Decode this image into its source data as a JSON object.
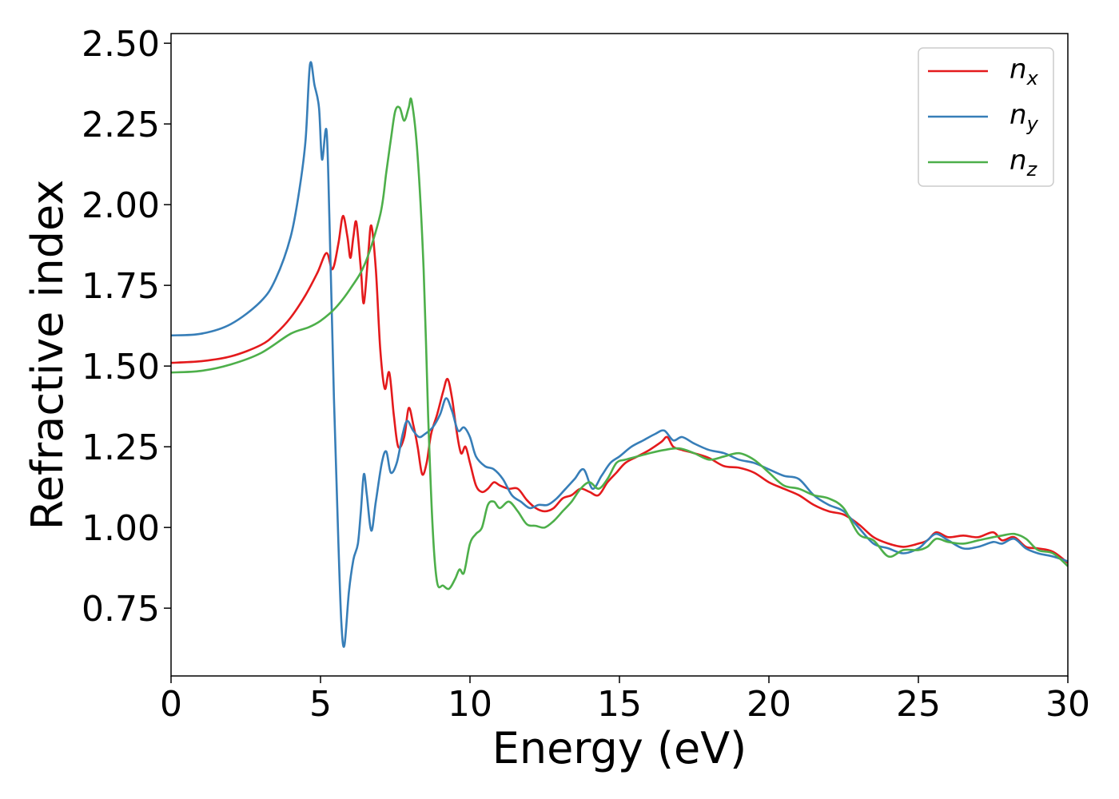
{
  "chart_data": {
    "type": "line",
    "xlabel": "Energy (eV)",
    "ylabel": "Refractive index",
    "xlim": [
      0,
      30
    ],
    "ylim": [
      0.54,
      2.53
    ],
    "xticks": [
      0,
      5,
      10,
      15,
      20,
      25,
      30
    ],
    "xtick_labels": [
      "0",
      "5",
      "10",
      "15",
      "20",
      "25",
      "30"
    ],
    "yticks": [
      0.75,
      1.0,
      1.25,
      1.5,
      1.75,
      2.0,
      2.25,
      2.5
    ],
    "ytick_labels": [
      "0.75",
      "1.00",
      "1.25",
      "1.50",
      "1.75",
      "2.00",
      "2.25",
      "2.50"
    ],
    "grid": false,
    "legend_position": "top-right",
    "series": [
      {
        "name": "n_x",
        "legend_base": "n",
        "legend_sub": "x",
        "color": "#e41a1c",
        "points": [
          [
            0,
            1.51
          ],
          [
            1,
            1.515
          ],
          [
            2,
            1.53
          ],
          [
            3,
            1.565
          ],
          [
            3.5,
            1.6
          ],
          [
            4,
            1.65
          ],
          [
            4.5,
            1.72
          ],
          [
            4.9,
            1.79
          ],
          [
            5.2,
            1.85
          ],
          [
            5.4,
            1.8
          ],
          [
            5.6,
            1.88
          ],
          [
            5.75,
            1.965
          ],
          [
            5.9,
            1.9
          ],
          [
            6.0,
            1.835
          ],
          [
            6.1,
            1.9
          ],
          [
            6.2,
            1.945
          ],
          [
            6.35,
            1.8
          ],
          [
            6.45,
            1.695
          ],
          [
            6.6,
            1.85
          ],
          [
            6.7,
            1.935
          ],
          [
            6.85,
            1.8
          ],
          [
            7.0,
            1.55
          ],
          [
            7.15,
            1.43
          ],
          [
            7.3,
            1.48
          ],
          [
            7.45,
            1.35
          ],
          [
            7.6,
            1.25
          ],
          [
            7.8,
            1.28
          ],
          [
            7.95,
            1.37
          ],
          [
            8.1,
            1.32
          ],
          [
            8.25,
            1.25
          ],
          [
            8.4,
            1.165
          ],
          [
            8.55,
            1.2
          ],
          [
            8.7,
            1.29
          ],
          [
            8.9,
            1.35
          ],
          [
            9.1,
            1.42
          ],
          [
            9.25,
            1.46
          ],
          [
            9.4,
            1.4
          ],
          [
            9.55,
            1.3
          ],
          [
            9.7,
            1.23
          ],
          [
            9.85,
            1.25
          ],
          [
            10.0,
            1.2
          ],
          [
            10.2,
            1.13
          ],
          [
            10.4,
            1.11
          ],
          [
            10.6,
            1.12
          ],
          [
            10.8,
            1.14
          ],
          [
            11.0,
            1.13
          ],
          [
            11.3,
            1.12
          ],
          [
            11.6,
            1.12
          ],
          [
            11.9,
            1.085
          ],
          [
            12.2,
            1.06
          ],
          [
            12.5,
            1.05
          ],
          [
            12.8,
            1.06
          ],
          [
            13.1,
            1.09
          ],
          [
            13.4,
            1.1
          ],
          [
            13.7,
            1.12
          ],
          [
            14.0,
            1.11
          ],
          [
            14.3,
            1.1
          ],
          [
            14.6,
            1.14
          ],
          [
            14.9,
            1.17
          ],
          [
            15.2,
            1.2
          ],
          [
            15.6,
            1.22
          ],
          [
            16.0,
            1.24
          ],
          [
            16.4,
            1.265
          ],
          [
            16.6,
            1.28
          ],
          [
            16.8,
            1.25
          ],
          [
            17.1,
            1.24
          ],
          [
            17.5,
            1.23
          ],
          [
            18.0,
            1.215
          ],
          [
            18.5,
            1.19
          ],
          [
            19.0,
            1.185
          ],
          [
            19.5,
            1.17
          ],
          [
            20.0,
            1.14
          ],
          [
            20.5,
            1.12
          ],
          [
            21.0,
            1.1
          ],
          [
            21.5,
            1.07
          ],
          [
            22.0,
            1.05
          ],
          [
            22.5,
            1.04
          ],
          [
            23.0,
            1.01
          ],
          [
            23.5,
            0.97
          ],
          [
            24.0,
            0.95
          ],
          [
            24.5,
            0.94
          ],
          [
            25.0,
            0.95
          ],
          [
            25.3,
            0.96
          ],
          [
            25.6,
            0.985
          ],
          [
            26.0,
            0.97
          ],
          [
            26.5,
            0.975
          ],
          [
            27.0,
            0.97
          ],
          [
            27.5,
            0.985
          ],
          [
            27.8,
            0.96
          ],
          [
            28.2,
            0.97
          ],
          [
            28.6,
            0.94
          ],
          [
            29.0,
            0.935
          ],
          [
            29.5,
            0.925
          ],
          [
            30.0,
            0.89
          ]
        ]
      },
      {
        "name": "n_y",
        "legend_base": "n",
        "legend_sub": "y",
        "color": "#377eb8",
        "points": [
          [
            0,
            1.595
          ],
          [
            1,
            1.6
          ],
          [
            2,
            1.63
          ],
          [
            3,
            1.7
          ],
          [
            3.5,
            1.77
          ],
          [
            4.0,
            1.9
          ],
          [
            4.3,
            2.05
          ],
          [
            4.5,
            2.2
          ],
          [
            4.65,
            2.435
          ],
          [
            4.8,
            2.37
          ],
          [
            4.95,
            2.3
          ],
          [
            5.05,
            2.14
          ],
          [
            5.2,
            2.23
          ],
          [
            5.3,
            1.95
          ],
          [
            5.45,
            1.4
          ],
          [
            5.6,
            0.95
          ],
          [
            5.7,
            0.7
          ],
          [
            5.8,
            0.635
          ],
          [
            5.95,
            0.8
          ],
          [
            6.1,
            0.9
          ],
          [
            6.25,
            0.95
          ],
          [
            6.35,
            1.05
          ],
          [
            6.45,
            1.165
          ],
          [
            6.55,
            1.1
          ],
          [
            6.7,
            0.99
          ],
          [
            6.85,
            1.08
          ],
          [
            7.05,
            1.2
          ],
          [
            7.2,
            1.235
          ],
          [
            7.35,
            1.17
          ],
          [
            7.55,
            1.2
          ],
          [
            7.75,
            1.29
          ],
          [
            7.9,
            1.33
          ],
          [
            8.1,
            1.3
          ],
          [
            8.3,
            1.28
          ],
          [
            8.5,
            1.29
          ],
          [
            8.75,
            1.31
          ],
          [
            9.0,
            1.35
          ],
          [
            9.2,
            1.4
          ],
          [
            9.4,
            1.36
          ],
          [
            9.6,
            1.3
          ],
          [
            9.8,
            1.31
          ],
          [
            10.0,
            1.28
          ],
          [
            10.2,
            1.22
          ],
          [
            10.5,
            1.19
          ],
          [
            10.8,
            1.18
          ],
          [
            11.1,
            1.15
          ],
          [
            11.4,
            1.1
          ],
          [
            11.7,
            1.08
          ],
          [
            12.0,
            1.06
          ],
          [
            12.3,
            1.07
          ],
          [
            12.6,
            1.07
          ],
          [
            12.9,
            1.09
          ],
          [
            13.2,
            1.12
          ],
          [
            13.5,
            1.15
          ],
          [
            13.8,
            1.18
          ],
          [
            14.1,
            1.12
          ],
          [
            14.4,
            1.16
          ],
          [
            14.7,
            1.2
          ],
          [
            15.0,
            1.22
          ],
          [
            15.4,
            1.25
          ],
          [
            15.8,
            1.27
          ],
          [
            16.2,
            1.29
          ],
          [
            16.5,
            1.3
          ],
          [
            16.8,
            1.27
          ],
          [
            17.1,
            1.28
          ],
          [
            17.5,
            1.26
          ],
          [
            18.0,
            1.24
          ],
          [
            18.5,
            1.23
          ],
          [
            19.0,
            1.21
          ],
          [
            19.5,
            1.2
          ],
          [
            20.0,
            1.18
          ],
          [
            20.5,
            1.16
          ],
          [
            21.0,
            1.15
          ],
          [
            21.5,
            1.1
          ],
          [
            22.0,
            1.07
          ],
          [
            22.5,
            1.05
          ],
          [
            23.0,
            1.0
          ],
          [
            23.5,
            0.95
          ],
          [
            24.0,
            0.935
          ],
          [
            24.5,
            0.92
          ],
          [
            25.0,
            0.935
          ],
          [
            25.3,
            0.96
          ],
          [
            25.6,
            0.98
          ],
          [
            26.0,
            0.96
          ],
          [
            26.5,
            0.935
          ],
          [
            27.0,
            0.94
          ],
          [
            27.5,
            0.955
          ],
          [
            27.8,
            0.95
          ],
          [
            28.2,
            0.965
          ],
          [
            28.6,
            0.935
          ],
          [
            29.0,
            0.92
          ],
          [
            29.5,
            0.91
          ],
          [
            30.0,
            0.895
          ]
        ]
      },
      {
        "name": "n_z",
        "legend_base": "n",
        "legend_sub": "z",
        "color": "#4daf4a",
        "points": [
          [
            0,
            1.48
          ],
          [
            1,
            1.485
          ],
          [
            2,
            1.505
          ],
          [
            3,
            1.54
          ],
          [
            4.0,
            1.6
          ],
          [
            4.6,
            1.62
          ],
          [
            5.0,
            1.64
          ],
          [
            5.5,
            1.68
          ],
          [
            6.0,
            1.74
          ],
          [
            6.5,
            1.82
          ],
          [
            7.0,
            1.97
          ],
          [
            7.2,
            2.1
          ],
          [
            7.35,
            2.2
          ],
          [
            7.5,
            2.29
          ],
          [
            7.65,
            2.3
          ],
          [
            7.8,
            2.26
          ],
          [
            7.95,
            2.3
          ],
          [
            8.05,
            2.32
          ],
          [
            8.25,
            2.15
          ],
          [
            8.45,
            1.8
          ],
          [
            8.6,
            1.35
          ],
          [
            8.75,
            1.0
          ],
          [
            8.9,
            0.83
          ],
          [
            9.1,
            0.82
          ],
          [
            9.3,
            0.81
          ],
          [
            9.5,
            0.84
          ],
          [
            9.65,
            0.87
          ],
          [
            9.8,
            0.86
          ],
          [
            10.0,
            0.95
          ],
          [
            10.2,
            0.98
          ],
          [
            10.4,
            1.0
          ],
          [
            10.6,
            1.07
          ],
          [
            10.8,
            1.08
          ],
          [
            11.0,
            1.06
          ],
          [
            11.3,
            1.08
          ],
          [
            11.6,
            1.05
          ],
          [
            11.9,
            1.01
          ],
          [
            12.2,
            1.005
          ],
          [
            12.5,
            1.0
          ],
          [
            12.8,
            1.02
          ],
          [
            13.1,
            1.05
          ],
          [
            13.4,
            1.08
          ],
          [
            13.7,
            1.12
          ],
          [
            14.0,
            1.14
          ],
          [
            14.3,
            1.12
          ],
          [
            14.6,
            1.15
          ],
          [
            14.9,
            1.2
          ],
          [
            15.2,
            1.21
          ],
          [
            15.6,
            1.22
          ],
          [
            16.0,
            1.23
          ],
          [
            16.5,
            1.24
          ],
          [
            17.0,
            1.245
          ],
          [
            17.5,
            1.23
          ],
          [
            18.0,
            1.21
          ],
          [
            18.5,
            1.22
          ],
          [
            19.0,
            1.23
          ],
          [
            19.5,
            1.21
          ],
          [
            20.0,
            1.17
          ],
          [
            20.5,
            1.13
          ],
          [
            21.0,
            1.12
          ],
          [
            21.5,
            1.1
          ],
          [
            22.0,
            1.09
          ],
          [
            22.5,
            1.06
          ],
          [
            23.0,
            0.98
          ],
          [
            23.5,
            0.96
          ],
          [
            24.0,
            0.91
          ],
          [
            24.5,
            0.93
          ],
          [
            25.0,
            0.93
          ],
          [
            25.3,
            0.94
          ],
          [
            25.6,
            0.965
          ],
          [
            26.0,
            0.955
          ],
          [
            26.5,
            0.95
          ],
          [
            27.0,
            0.96
          ],
          [
            27.5,
            0.97
          ],
          [
            27.8,
            0.975
          ],
          [
            28.2,
            0.98
          ],
          [
            28.6,
            0.965
          ],
          [
            29.0,
            0.93
          ],
          [
            29.5,
            0.92
          ],
          [
            30.0,
            0.88
          ]
        ]
      }
    ]
  }
}
